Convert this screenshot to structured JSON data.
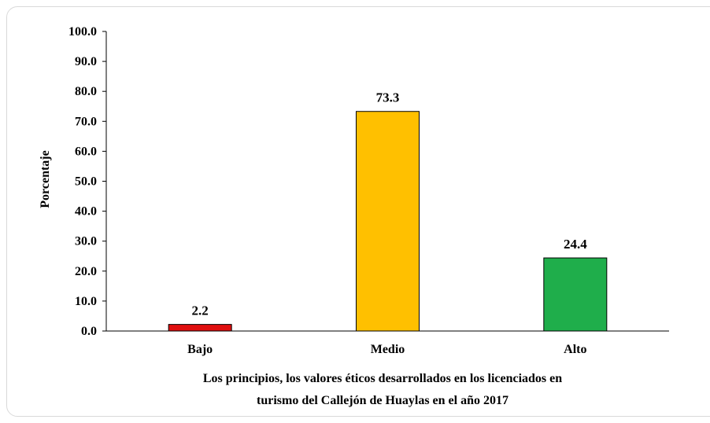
{
  "chart_data": {
    "type": "bar",
    "categories": [
      "Bajo",
      "Medio",
      "Alto"
    ],
    "values": [
      2.2,
      73.3,
      24.4
    ],
    "data_labels": [
      "2.2",
      "73.3",
      "24.4"
    ],
    "colors": [
      "#e01010",
      "#ffc000",
      "#1fae4b"
    ],
    "ylabel": "Porcentaje",
    "xlabel": [
      "Los principios, los valores éticos desarrollados en los licenciados en",
      "turismo del Callejón de Huaylas en el año 2017"
    ],
    "ylim": [
      0,
      100
    ],
    "yticks": [
      "0.0",
      "10.0",
      "20.0",
      "30.0",
      "40.0",
      "50.0",
      "60.0",
      "70.0",
      "80.0",
      "90.0",
      "100.0"
    ],
    "grid": false,
    "legend": "none"
  }
}
